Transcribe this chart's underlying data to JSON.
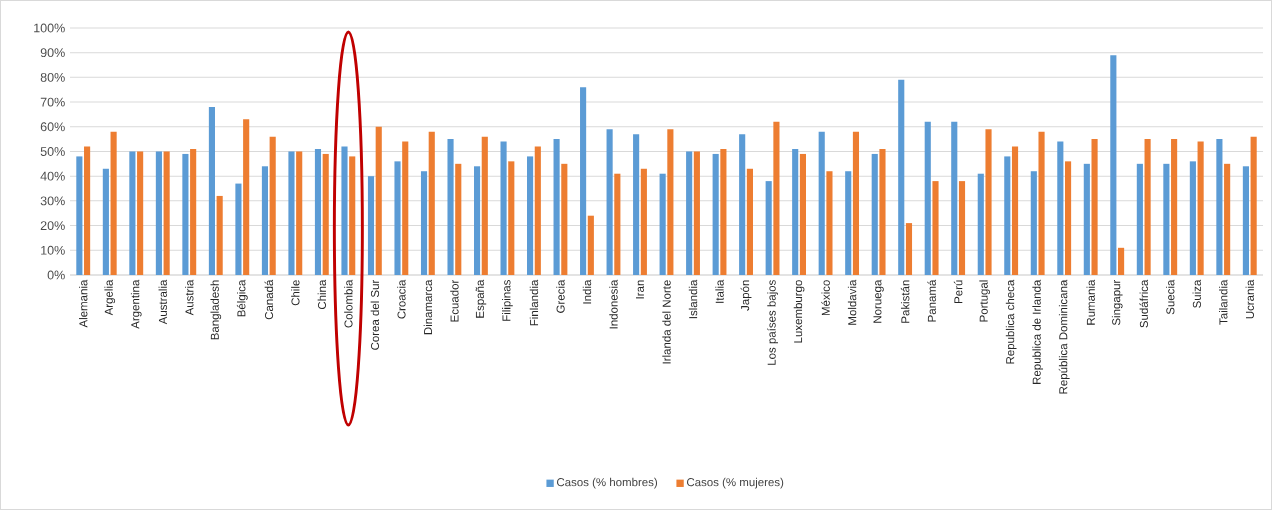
{
  "chart_data": {
    "type": "bar",
    "categories": [
      "Alemania",
      "Argelia",
      "Argentina",
      "Australia",
      "Austria",
      "Bangladesh",
      "Bélgica",
      "Canadá",
      "Chile",
      "China",
      "Colombia",
      "Corea del Sur",
      "Croacia",
      "Dinamarca",
      "Ecuador",
      "España",
      "Filipinas",
      "Finlandia",
      "Grecia",
      "India",
      "Indonesia",
      "Iran",
      "Irlanda del Norte",
      "Islandia",
      "Italia",
      "Japón",
      "Los países bajos",
      "Luxemburgo",
      "México",
      "Moldavia",
      "Noruega",
      "Pakistán",
      "Panamá",
      "Perú",
      "Portugal",
      "Republica checa",
      "Republica de Irlanda",
      "República Dominicana",
      "Rumania",
      "Singapur",
      "Sudáfrica",
      "Suecia",
      "Suiza",
      "Tailandia",
      "Ucrania"
    ],
    "series": [
      {
        "name": "Casos (% hombres)",
        "color": "#5b9bd5",
        "values": [
          48,
          43,
          50,
          50,
          49,
          68,
          37,
          44,
          50,
          51,
          52,
          40,
          46,
          42,
          55,
          44,
          54,
          48,
          55,
          76,
          59,
          57,
          41,
          50,
          49,
          57,
          38,
          51,
          58,
          42,
          49,
          79,
          62,
          62,
          41,
          48,
          42,
          54,
          45,
          89,
          45,
          45,
          46,
          55,
          44
        ]
      },
      {
        "name": "Casos (% mujeres)",
        "color": "#ed7d31",
        "values": [
          52,
          58,
          50,
          50,
          51,
          32,
          63,
          56,
          50,
          49,
          48,
          60,
          54,
          58,
          45,
          56,
          46,
          52,
          45,
          24,
          41,
          43,
          59,
          50,
          51,
          43,
          62,
          49,
          42,
          58,
          51,
          21,
          38,
          38,
          59,
          52,
          58,
          46,
          55,
          11,
          55,
          55,
          54,
          45,
          56
        ]
      }
    ],
    "ylim": [
      0,
      100
    ],
    "yticks": [
      {
        "value": 0,
        "label": "0%"
      },
      {
        "value": 10,
        "label": "10%"
      },
      {
        "value": 20,
        "label": "20%"
      },
      {
        "value": 30,
        "label": "30%"
      },
      {
        "value": 40,
        "label": "40%"
      },
      {
        "value": 50,
        "label": "50%"
      },
      {
        "value": 60,
        "label": "60%"
      },
      {
        "value": 70,
        "label": "70%"
      },
      {
        "value": 80,
        "label": "80%"
      },
      {
        "value": 90,
        "label": "90%"
      },
      {
        "value": 100,
        "label": "100%"
      }
    ],
    "grid": "y",
    "legend": "bottom"
  }
}
